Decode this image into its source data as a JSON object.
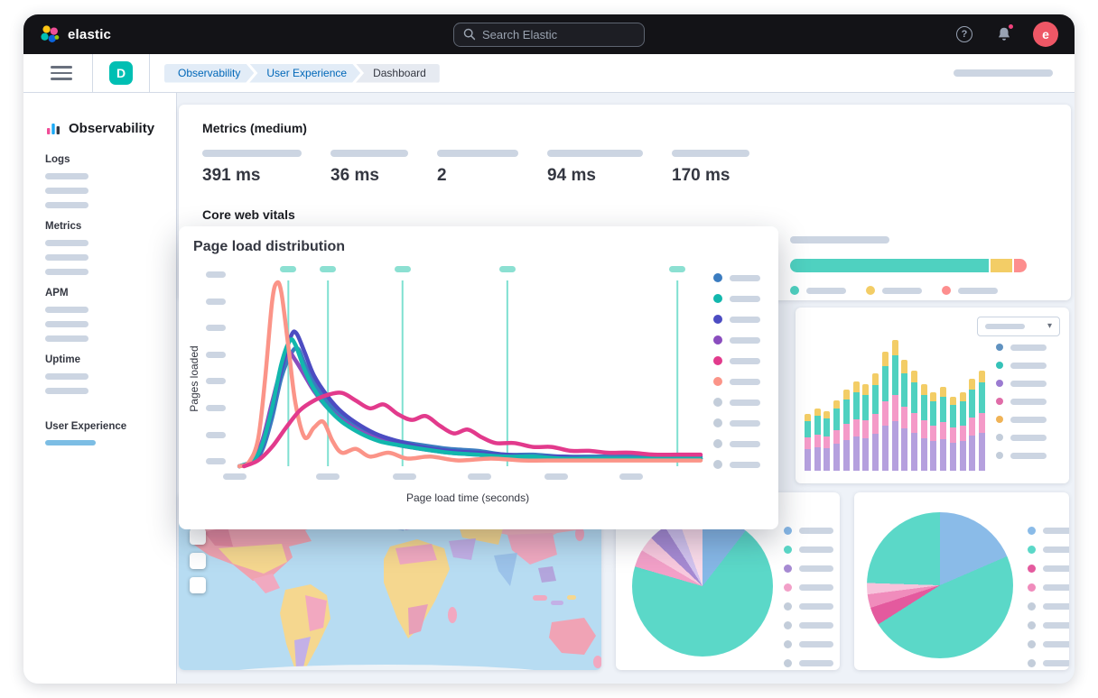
{
  "header": {
    "brand": "elastic",
    "search": {
      "placeholder": "Search Elastic"
    },
    "avatar_initial": "e"
  },
  "navbar": {
    "deployment_initial": "D",
    "breadcrumbs": [
      {
        "label": "Observability"
      },
      {
        "label": "User Experience"
      },
      {
        "label": "Dashboard"
      }
    ]
  },
  "sidebar": {
    "title": "Observability",
    "items": [
      {
        "label": "Logs",
        "placeholders": 3,
        "active": false
      },
      {
        "label": "Metrics",
        "placeholders": 3,
        "active": false
      },
      {
        "label": "APM",
        "placeholders": 3,
        "active": false
      },
      {
        "label": "Uptime",
        "placeholders": 2,
        "active": false
      },
      {
        "label": "User Experience",
        "placeholders": 0,
        "active": true
      }
    ]
  },
  "metrics_panel": {
    "title": "Metrics (medium)",
    "metrics": [
      {
        "value": "391 ms"
      },
      {
        "value": "36 ms"
      },
      {
        "value": "2"
      },
      {
        "value": "94 ms"
      },
      {
        "value": "170 ms"
      }
    ],
    "core_web_vitals": {
      "title": "Core web vitals",
      "bar_segments": [
        {
          "color": "#4fd1c0",
          "pct": 84
        },
        {
          "color": "#f3cd66",
          "pct": 9
        },
        {
          "color": "#fd8e8e",
          "pct": 7
        }
      ],
      "legend_colors": [
        "#4fd1c0",
        "#f3cd66",
        "#fd8e8e"
      ]
    }
  },
  "modal": {
    "title": "Page load distribution",
    "ylabel": "Pages loaded",
    "xlabel": "Page load time (seconds)"
  },
  "chart_data": [
    {
      "type": "line",
      "title": "Page load distribution",
      "xlabel": "Page load time (seconds)",
      "ylabel": "Pages loaded",
      "x_range_pct": [
        0,
        100
      ],
      "y_range_pct": [
        0,
        100
      ],
      "x_tick_placeholders": 6,
      "y_tick_placeholders": 8,
      "gridlines_x_pct": [
        11.5,
        20,
        36,
        58.5,
        95
      ],
      "gridline_color": "#7fe0d1",
      "marker_color": "#8ce0d2",
      "legend_position": "right",
      "legend_dot_colors": [
        "#3b7cc0",
        "#12b7ad",
        "#4c4cc2",
        "#8a4dbe",
        "#e23a8c",
        "#fb9488",
        "#c3cdda",
        "#c3cdda",
        "#c3cdda",
        "#c3cdda"
      ],
      "series": [
        {
          "name": "series-blue",
          "color": "#3b7cc0",
          "points": [
            [
              1,
              0
            ],
            [
              4,
              2
            ],
            [
              6,
              9
            ],
            [
              8,
              25
            ],
            [
              10,
              46
            ],
            [
              12,
              58
            ],
            [
              13.5,
              61
            ],
            [
              15,
              53
            ],
            [
              17,
              43
            ],
            [
              20,
              33
            ],
            [
              23,
              26
            ],
            [
              27,
              20
            ],
            [
              31,
              16
            ],
            [
              35,
              13
            ],
            [
              40,
              11
            ],
            [
              46,
              9
            ],
            [
              52,
              8
            ],
            [
              58,
              6
            ],
            [
              64,
              6
            ],
            [
              70,
              5
            ],
            [
              78,
              5
            ],
            [
              86,
              5
            ],
            [
              93,
              5
            ],
            [
              100,
              5
            ]
          ]
        },
        {
          "name": "series-purple",
          "color": "#8a4dbe",
          "points": [
            [
              1,
              0
            ],
            [
              4,
              3
            ],
            [
              6,
              14
            ],
            [
              8,
              33
            ],
            [
              10,
              51
            ],
            [
              11.5,
              59
            ],
            [
              13,
              55
            ],
            [
              15,
              47
            ],
            [
              17,
              39
            ],
            [
              20,
              30
            ],
            [
              23,
              24
            ],
            [
              27,
              18
            ],
            [
              31,
              14
            ],
            [
              35,
              11
            ],
            [
              40,
              9
            ],
            [
              46,
              7
            ],
            [
              52,
              6
            ],
            [
              58,
              5
            ],
            [
              64,
              5
            ],
            [
              70,
              4
            ],
            [
              78,
              4
            ],
            [
              86,
              4
            ],
            [
              93,
              4
            ],
            [
              100,
              4
            ]
          ]
        },
        {
          "name": "series-indigo",
          "color": "#4c4cc2",
          "points": [
            [
              1,
              0
            ],
            [
              4,
              3
            ],
            [
              6,
              11
            ],
            [
              8,
              29
            ],
            [
              10,
              50
            ],
            [
              12,
              67
            ],
            [
              13.2,
              69
            ],
            [
              15,
              59
            ],
            [
              17,
              47
            ],
            [
              20,
              36
            ],
            [
              23,
              28
            ],
            [
              27,
              21
            ],
            [
              31,
              16
            ],
            [
              35,
              13
            ],
            [
              40,
              10
            ],
            [
              46,
              8
            ],
            [
              52,
              7
            ],
            [
              58,
              6
            ],
            [
              64,
              5
            ],
            [
              70,
              5
            ],
            [
              78,
              4
            ],
            [
              86,
              4
            ],
            [
              93,
              4
            ],
            [
              100,
              4
            ]
          ]
        },
        {
          "name": "series-teal",
          "color": "#12b7ad",
          "points": [
            [
              1,
              0
            ],
            [
              4,
              3
            ],
            [
              6,
              12
            ],
            [
              8,
              30
            ],
            [
              10,
              53
            ],
            [
              11.8,
              65
            ],
            [
              13,
              63
            ],
            [
              15,
              50
            ],
            [
              17,
              40
            ],
            [
              20,
              30
            ],
            [
              23,
              23
            ],
            [
              27,
              17
            ],
            [
              31,
              13
            ],
            [
              35,
              11
            ],
            [
              40,
              9
            ],
            [
              46,
              7
            ],
            [
              52,
              6
            ],
            [
              58,
              5
            ],
            [
              64,
              5
            ],
            [
              70,
              4
            ],
            [
              78,
              4
            ],
            [
              86,
              4
            ],
            [
              93,
              4
            ],
            [
              100,
              4
            ]
          ]
        },
        {
          "name": "series-salmon",
          "color": "#fb9488",
          "points": [
            [
              1,
              0
            ],
            [
              3,
              2
            ],
            [
              5,
              14
            ],
            [
              6.5,
              45
            ],
            [
              8,
              85
            ],
            [
              9,
              95
            ],
            [
              10,
              90
            ],
            [
              11.5,
              62
            ],
            [
              13,
              33
            ],
            [
              15,
              15
            ],
            [
              17,
              20
            ],
            [
              19,
              23
            ],
            [
              21,
              13
            ],
            [
              23,
              7
            ],
            [
              26,
              9
            ],
            [
              29,
              5
            ],
            [
              33,
              7
            ],
            [
              37,
              4
            ],
            [
              42,
              5
            ],
            [
              48,
              3
            ],
            [
              55,
              4
            ],
            [
              62,
              3
            ],
            [
              70,
              3
            ],
            [
              80,
              3
            ],
            [
              90,
              3
            ],
            [
              100,
              3
            ]
          ]
        },
        {
          "name": "series-magenta",
          "color": "#e23a8c",
          "points": [
            [
              2,
              0
            ],
            [
              5,
              3
            ],
            [
              8,
              10
            ],
            [
              11,
              20
            ],
            [
              14,
              29
            ],
            [
              17,
              34
            ],
            [
              20,
              37
            ],
            [
              23,
              38
            ],
            [
              26,
              34
            ],
            [
              29,
              30
            ],
            [
              32,
              32
            ],
            [
              35,
              27
            ],
            [
              38,
              24
            ],
            [
              41,
              26
            ],
            [
              44,
              21
            ],
            [
              47,
              17
            ],
            [
              50,
              19
            ],
            [
              53,
              15
            ],
            [
              56,
              12
            ],
            [
              60,
              12
            ],
            [
              64,
              10
            ],
            [
              68,
              10
            ],
            [
              72,
              8
            ],
            [
              76,
              8
            ],
            [
              80,
              7
            ],
            [
              85,
              7
            ],
            [
              90,
              6
            ],
            [
              95,
              6
            ],
            [
              100,
              6
            ]
          ]
        }
      ]
    },
    {
      "type": "bar",
      "stacked": true,
      "bars_pct": [
        42,
        46,
        44,
        52,
        60,
        66,
        64,
        72,
        88,
        97,
        82,
        74,
        64,
        58,
        62,
        55,
        58,
        68,
        74
      ],
      "segment_fractions_bottom_to_top": [
        0.38,
        0.2,
        0.3,
        0.12
      ],
      "segment_colors_bottom_to_top": [
        "#b5a0de",
        "#f49ac8",
        "#4fd1c0",
        "#f3cd66"
      ],
      "legend_dot_colors": [
        "#6092c0",
        "#35c2b8",
        "#9b7bd1",
        "#e06ca8",
        "#f0b356",
        "#c3cdda",
        "#c3cdda"
      ]
    },
    {
      "type": "pie",
      "slices": [
        {
          "color": "#86b7e6",
          "pct": 10.5
        },
        {
          "color": "#5bd8c8",
          "pct": 69
        },
        {
          "color": "#f2a0c8",
          "pct": 4
        },
        {
          "color": "#f8c9de",
          "pct": 3.5
        },
        {
          "color": "#a68ad2",
          "pct": 4
        },
        {
          "color": "#d2c3ee",
          "pct": 3.5
        },
        {
          "color": "#fadbe9",
          "pct": 5.5
        }
      ],
      "legend_dot_colors": [
        "#86b7e6",
        "#5bd8c8",
        "#a68ad2",
        "#f2a0c8",
        "#c3cdda",
        "#c3cdda",
        "#c3cdda",
        "#c3cdda"
      ]
    },
    {
      "type": "pie",
      "slices": [
        {
          "color": "#8abbe8",
          "pct": 18.5
        },
        {
          "color": "#5bd8c8",
          "pct": 47.5
        },
        {
          "color": "#e45a9e",
          "pct": 4
        },
        {
          "color": "#f08cbc",
          "pct": 3
        },
        {
          "color": "#f7c3dc",
          "pct": 2.5
        },
        {
          "color": "#5bd8c8",
          "pct": 24.5
        }
      ],
      "legend_dot_colors": [
        "#8abbe8",
        "#5bd8c8",
        "#e45a9e",
        "#f08cbc",
        "#c3cdda",
        "#c3cdda",
        "#c3cdda",
        "#c3cdda"
      ]
    }
  ]
}
